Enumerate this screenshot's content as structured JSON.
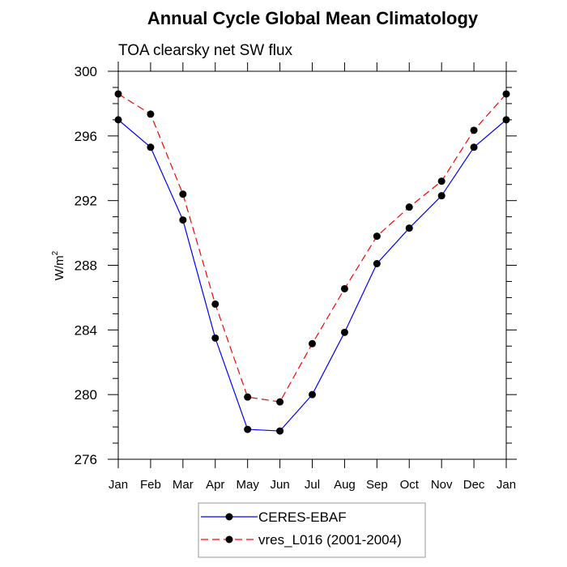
{
  "chart_data": {
    "type": "line",
    "title": "Annual Cycle Global Mean Climatology",
    "subtitle": "TOA clearsky net SW flux",
    "xlabel": "",
    "ylabel": "W/m",
    "ylabel_superscript": "2",
    "categories": [
      "Jan",
      "Feb",
      "Mar",
      "Apr",
      "May",
      "Jun",
      "Jul",
      "Aug",
      "Sep",
      "Oct",
      "Nov",
      "Dec",
      "Jan"
    ],
    "ylim": [
      276,
      300
    ],
    "yticks": [
      276,
      280,
      284,
      288,
      292,
      296,
      300
    ],
    "y_minor_step": 1,
    "grid": false,
    "legend_position": "bottom-center",
    "series": [
      {
        "name": "CERES-EBAF",
        "color": "#0000ff",
        "line_style": "solid",
        "marker": "filled-circle",
        "values": [
          297.0,
          295.3,
          290.8,
          283.5,
          277.85,
          277.75,
          280.0,
          283.85,
          288.1,
          290.3,
          292.3,
          295.3,
          297.0
        ]
      },
      {
        "name": "vres_L016 (2001-2004)",
        "color": "#ff0000",
        "line_style": "dashed",
        "marker": "filled-circle",
        "values": [
          298.6,
          297.35,
          292.4,
          285.6,
          279.85,
          279.55,
          283.15,
          286.55,
          289.8,
          291.6,
          293.2,
          296.35,
          298.6
        ]
      }
    ]
  }
}
